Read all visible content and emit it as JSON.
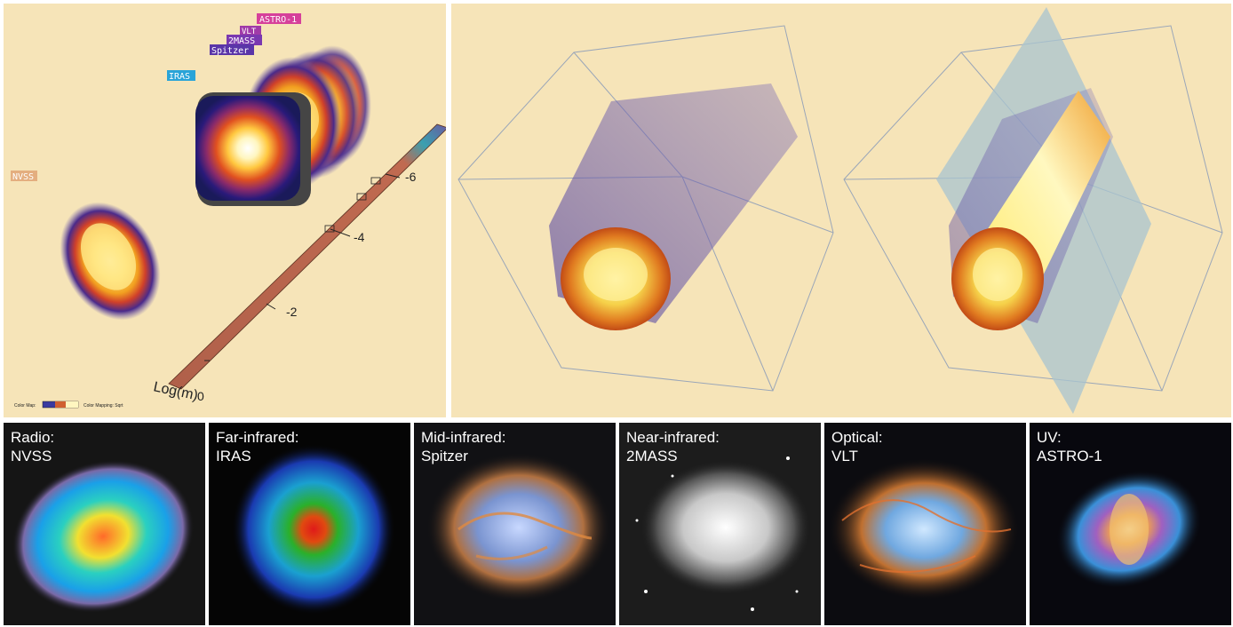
{
  "stack_view": {
    "layer_tags": [
      "ASTRO-1",
      "VLT",
      "2MASS",
      "Spitzer",
      "IRAS",
      "NVSS"
    ],
    "axis_label": "Log(m)",
    "axis_ticks": [
      "0",
      "-2",
      "-4",
      "-6"
    ],
    "footer": {
      "color_map_label": "Color Map:",
      "color_mapping_label": "Color Mapping: Sqrt"
    }
  },
  "thumbnails": [
    {
      "band": "Radio:",
      "source": "NVSS"
    },
    {
      "band": "Far-infrared:",
      "source": "IRAS"
    },
    {
      "band": "Mid-infrared:",
      "source": "Spitzer"
    },
    {
      "band": "Near-infrared:",
      "source": "2MASS"
    },
    {
      "band": "Optical:",
      "source": "VLT"
    },
    {
      "band": "UV:",
      "source": "ASTRO-1"
    }
  ],
  "colors": {
    "panel_background": "#f6e4b8",
    "tag_astro": "#d6409a",
    "tag_vlt": "#a03aa8",
    "tag_2mass": "#7a38b0",
    "tag_spitzer": "#5a35a8",
    "tag_iras": "#2aa4d8",
    "tag_nvss": "#e0a070"
  }
}
